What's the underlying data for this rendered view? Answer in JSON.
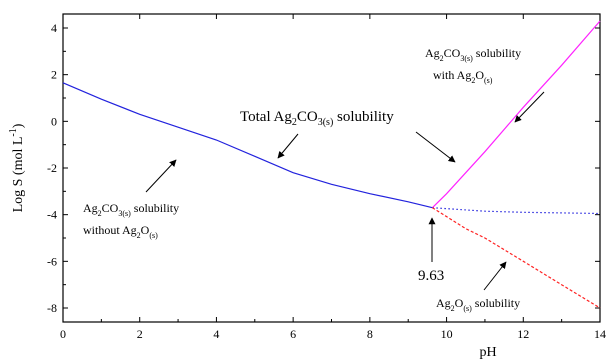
{
  "chart_data": {
    "type": "line",
    "xlabel": "pH",
    "ylabel": "Log S (mol L⁻¹)",
    "xlim": [
      0,
      14
    ],
    "ylim": [
      -8.6,
      4.6
    ],
    "xticks": [
      0,
      2,
      4,
      6,
      8,
      10,
      12,
      14
    ],
    "yticks": [
      4,
      2,
      0,
      -2,
      -4,
      -6,
      -8
    ],
    "grid": false,
    "legend": "none",
    "series": [
      {
        "key": "total_without",
        "color": "#2222dd",
        "dash": "solid",
        "points": [
          [
            0,
            1.65
          ],
          [
            1,
            0.95
          ],
          [
            2,
            0.3
          ],
          [
            3,
            -0.25
          ],
          [
            4,
            -0.8
          ],
          [
            5,
            -1.5
          ],
          [
            6,
            -2.2
          ],
          [
            7,
            -2.7
          ],
          [
            8,
            -3.1
          ],
          [
            9,
            -3.45
          ],
          [
            9.63,
            -3.7
          ]
        ]
      },
      {
        "key": "with_ag2o",
        "color": "#ff22ff",
        "dash": "solid",
        "points": [
          [
            9.63,
            -3.7
          ],
          [
            10,
            -3.1
          ],
          [
            11,
            -1.3
          ],
          [
            12,
            0.6
          ],
          [
            13,
            2.4
          ],
          [
            14,
            4.3
          ]
        ]
      },
      {
        "key": "without_extension",
        "color": "#2222dd",
        "dash": "dotted",
        "points": [
          [
            9.63,
            -3.7
          ],
          [
            11,
            -3.85
          ],
          [
            12,
            -3.9
          ],
          [
            14,
            -3.95
          ]
        ]
      },
      {
        "key": "ag2o_solubility",
        "color": "#ff2222",
        "dash": "dashed",
        "points": [
          [
            9.63,
            -3.7
          ],
          [
            10.5,
            -4.6
          ],
          [
            11,
            -5.0
          ],
          [
            12,
            -6.0
          ],
          [
            13,
            -7.0
          ],
          [
            14,
            -8.0
          ]
        ]
      }
    ],
    "annotations": [
      {
        "key": "total",
        "parts": [
          {
            "t": "Total Ag",
            "s": "normal"
          },
          {
            "t": "2",
            "s": "sub"
          },
          {
            "t": "CO",
            "s": "normal"
          },
          {
            "t": "3(s)",
            "s": "sub"
          },
          {
            "t": " solubility",
            "s": "normal"
          }
        ]
      },
      {
        "key": "with_line1",
        "parts": [
          {
            "t": "Ag",
            "s": "normal"
          },
          {
            "t": "2",
            "s": "sub"
          },
          {
            "t": "CO",
            "s": "normal"
          },
          {
            "t": "3(s)",
            "s": "sub"
          },
          {
            "t": " solubility",
            "s": "normal"
          }
        ]
      },
      {
        "key": "with_line2",
        "parts": [
          {
            "t": "with Ag",
            "s": "normal"
          },
          {
            "t": "2",
            "s": "sub"
          },
          {
            "t": "O",
            "s": "normal"
          },
          {
            "t": "(s)",
            "s": "sub"
          }
        ]
      },
      {
        "key": "without_line1",
        "parts": [
          {
            "t": "Ag",
            "s": "normal"
          },
          {
            "t": "2",
            "s": "sub"
          },
          {
            "t": "CO",
            "s": "normal"
          },
          {
            "t": "3(s)",
            "s": "sub"
          },
          {
            "t": " solubility",
            "s": "normal"
          }
        ]
      },
      {
        "key": "without_line2",
        "parts": [
          {
            "t": "without Ag",
            "s": "normal"
          },
          {
            "t": "2",
            "s": "sub"
          },
          {
            "t": "O",
            "s": "normal"
          },
          {
            "t": "(s)",
            "s": "sub"
          }
        ]
      },
      {
        "key": "ph_point",
        "parts": [
          {
            "t": "9.63",
            "s": "normal"
          }
        ]
      },
      {
        "key": "ag2o",
        "parts": [
          {
            "t": "Ag",
            "s": "normal"
          },
          {
            "t": "2",
            "s": "sub"
          },
          {
            "t": "O",
            "s": "normal"
          },
          {
            "t": "(s)",
            "s": "sub"
          },
          {
            "t": " solubility",
            "s": "normal"
          }
        ]
      }
    ]
  }
}
